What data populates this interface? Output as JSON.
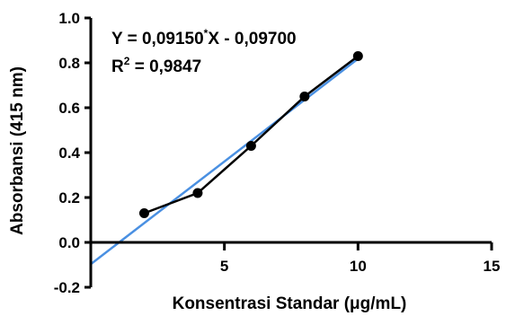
{
  "chart_data": {
    "type": "scatter",
    "xlabel": "Konsentrasi Standar (μg/mL)",
    "ylabel": "Absorbansi (415 nm)",
    "xlim": [
      0,
      15
    ],
    "ylim": [
      -0.2,
      1.0
    ],
    "x_ticks": [
      5,
      10,
      15
    ],
    "x_tick_labels": [
      "5",
      "10",
      "15"
    ],
    "y_ticks": [
      -0.2,
      0.0,
      0.2,
      0.4,
      0.6,
      0.8,
      1.0
    ],
    "y_tick_labels": [
      "-0.2",
      "0.0",
      "0.2",
      "0.4",
      "0.6",
      "0.8",
      "1.0"
    ],
    "grid": false,
    "series": [
      {
        "type": "line+markers",
        "color": "#000000",
        "x": [
          2,
          4,
          6,
          8,
          10
        ],
        "y": [
          0.13,
          0.22,
          0.43,
          0.65,
          0.83
        ]
      },
      {
        "type": "fit-line",
        "color": "#4a90e2",
        "slope": 0.0915,
        "intercept": -0.097,
        "x_range": [
          0,
          10
        ]
      }
    ],
    "annotations": {
      "equation_prefix": "Y = 0,09150",
      "equation_sup": "*",
      "equation_suffix": "X - 0,09700",
      "r2_prefix": "R",
      "r2_sup": "2",
      "r2_suffix": " = 0,9847"
    }
  }
}
